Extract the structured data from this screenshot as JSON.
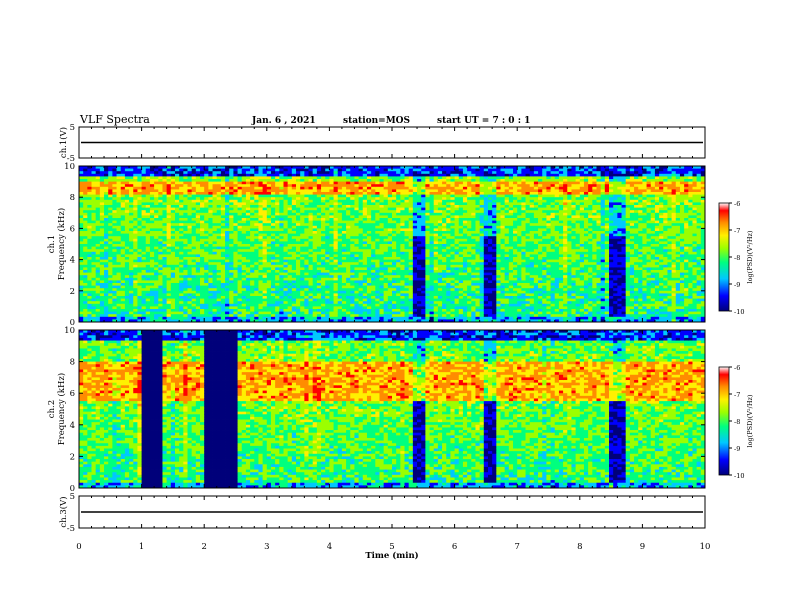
{
  "header": {
    "title": "VLF Spectra",
    "date": "Jan. 6 , 2021",
    "station": "station=MOS",
    "start_ut": "start UT =  7 : 0 : 1"
  },
  "chart_data": [
    {
      "type": "line",
      "panel": "ch1-waveform",
      "ylabel": "ch.1(V)",
      "ylim": [
        -5,
        5
      ],
      "yticks": [
        "5",
        "-5"
      ],
      "xlim": [
        0,
        10
      ],
      "series": [
        {
          "values_constant": 0
        }
      ]
    },
    {
      "type": "heatmap",
      "panel": "ch1-spectrogram",
      "ylabel": "ch.1\nFrequency (kHz)",
      "ylim": [
        0,
        10
      ],
      "yticks": [
        "0",
        "2",
        "4",
        "6",
        "8",
        "10"
      ],
      "xlim": [
        0,
        10
      ],
      "colorbar": {
        "label": "log(PSD)(V²/Hz)",
        "range": [
          -10,
          -6
        ],
        "ticks": [
          "-6",
          "-7",
          "-8",
          "-9",
          "-10"
        ]
      },
      "dark_intervals_min": [
        [
          5.35,
          5.55
        ],
        [
          6.5,
          6.65
        ],
        [
          8.45,
          8.7
        ]
      ],
      "intense_band_khz": [
        8.2,
        9.0
      ]
    },
    {
      "type": "heatmap",
      "panel": "ch2-spectrogram",
      "ylabel": "ch.2\nFrequency (kHz)",
      "ylim": [
        0,
        10
      ],
      "yticks": [
        "0",
        "2",
        "4",
        "6",
        "8",
        "10"
      ],
      "xlim": [
        0,
        10
      ],
      "colorbar": {
        "label": "log(PSD)(V²/Hz)",
        "range": [
          -10,
          -6
        ],
        "ticks": [
          "-6",
          "-7",
          "-8",
          "-9",
          "-10"
        ]
      },
      "data_gaps_min": [
        [
          1.0,
          1.3
        ],
        [
          2.0,
          2.55
        ]
      ],
      "dark_intervals_min": [
        [
          5.35,
          5.55
        ],
        [
          6.5,
          6.65
        ],
        [
          8.45,
          8.7
        ]
      ],
      "intense_band_khz": [
        5.5,
        8.0
      ]
    },
    {
      "type": "line",
      "panel": "ch3-waveform",
      "ylabel": "ch.3(V)",
      "ylim": [
        -5,
        5
      ],
      "yticks": [
        "5",
        "-5"
      ],
      "xlim": [
        0,
        10
      ],
      "series": [
        {
          "values_constant": 0
        }
      ]
    }
  ],
  "xaxis": {
    "label": "Time (min)",
    "ticks": [
      "0",
      "1",
      "2",
      "3",
      "4",
      "5",
      "6",
      "7",
      "8",
      "9",
      "10"
    ]
  },
  "colors": {
    "colormap": [
      "#00007a",
      "#0000ff",
      "#00c8ff",
      "#00ff7f",
      "#9bff00",
      "#fff000",
      "#ff8c00",
      "#ff0000",
      "#ffffff"
    ],
    "axis": "#000000"
  }
}
